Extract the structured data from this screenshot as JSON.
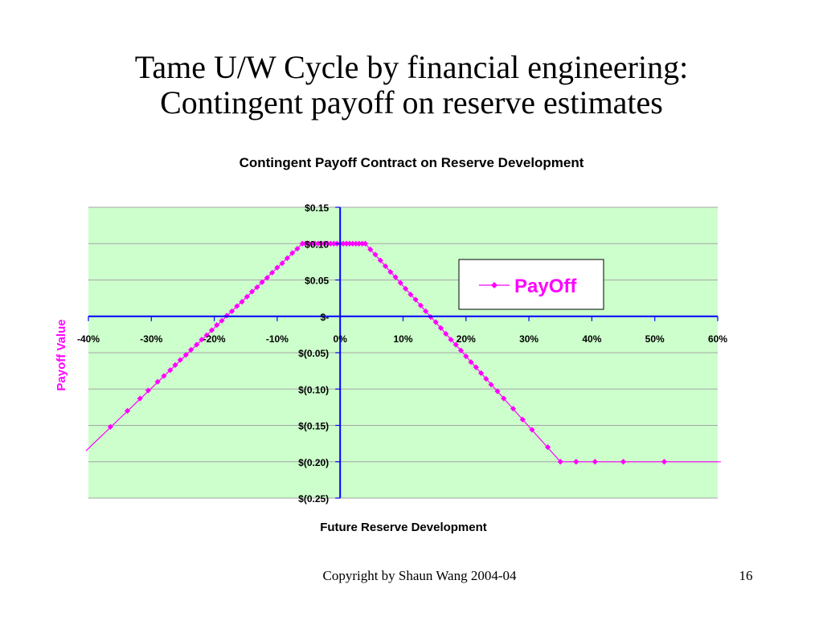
{
  "slide": {
    "title_line1": "Tame U/W Cycle by financial engineering:",
    "title_line2": "Contingent payoff on reserve estimates",
    "copyright": "Copyright by Shaun Wang 2004-04",
    "page_number": "16"
  },
  "colors": {
    "plot_background": "#ccffcc",
    "series": "#ff00ff",
    "axis": "#0000ff",
    "gridline": "#a6a6a6"
  },
  "chart_data": {
    "type": "line",
    "title": "Contingent Payoff Contract on Reserve Development",
    "xlabel": "Future Reserve Development",
    "ylabel": "Payoff Value",
    "xlim": [
      -0.4,
      0.6
    ],
    "ylim": [
      -0.25,
      0.15
    ],
    "x_ticks": [
      -0.4,
      -0.3,
      -0.2,
      -0.1,
      0,
      0.1,
      0.2,
      0.3,
      0.4,
      0.5,
      0.6
    ],
    "x_tick_labels": [
      "-40%",
      "-30%",
      "-20%",
      "-10%",
      "0%",
      "10%",
      "20%",
      "30%",
      "40%",
      "50%",
      "60%"
    ],
    "y_ticks": [
      0.15,
      0.1,
      0.05,
      0,
      -0.05,
      -0.1,
      -0.15,
      -0.2,
      -0.25
    ],
    "y_tick_labels": [
      "$0.15",
      "$0.10",
      "$0.05",
      "$-",
      "$(0.05)",
      "$(0.10)",
      "$(0.15)",
      "$(0.20)",
      "$(0.25)"
    ],
    "grid": "horizontal",
    "legend_position": "right",
    "series": [
      {
        "name": "PayOff",
        "line": [
          [
            -0.404,
            -0.185
          ],
          [
            -0.06,
            0.1
          ],
          [
            0.04,
            0.1
          ],
          [
            0.35,
            -0.2
          ],
          [
            0.605,
            -0.2
          ]
        ],
        "x": [
          -0.365,
          -0.338,
          -0.318,
          -0.305,
          -0.29,
          -0.28,
          -0.27,
          -0.262,
          -0.254,
          -0.245,
          -0.237,
          -0.228,
          -0.22,
          -0.212,
          -0.204,
          -0.196,
          -0.188,
          -0.18,
          -0.172,
          -0.164,
          -0.156,
          -0.148,
          -0.14,
          -0.132,
          -0.124,
          -0.116,
          -0.108,
          -0.1,
          -0.092,
          -0.084,
          -0.076,
          -0.068,
          -0.06,
          -0.055,
          -0.05,
          -0.045,
          -0.04,
          -0.035,
          -0.03,
          -0.025,
          -0.02,
          -0.015,
          -0.01,
          -0.005,
          0.0,
          0.005,
          0.01,
          0.015,
          0.02,
          0.025,
          0.03,
          0.035,
          0.04,
          0.048,
          0.056,
          0.064,
          0.072,
          0.08,
          0.088,
          0.096,
          0.104,
          0.112,
          0.12,
          0.128,
          0.136,
          0.144,
          0.152,
          0.16,
          0.168,
          0.176,
          0.184,
          0.192,
          0.2,
          0.208,
          0.216,
          0.224,
          0.232,
          0.24,
          0.25,
          0.26,
          0.275,
          0.29,
          0.305,
          0.33,
          0.35,
          0.375,
          0.405,
          0.45,
          0.515
        ],
        "values": [
          -0.152,
          -0.13,
          -0.113,
          -0.102,
          -0.09,
          -0.082,
          -0.074,
          -0.067,
          -0.06,
          -0.053,
          -0.046,
          -0.039,
          -0.032,
          -0.026,
          -0.019,
          -0.012,
          -0.006,
          0.001,
          0.007,
          0.014,
          0.02,
          0.027,
          0.034,
          0.04,
          0.047,
          0.053,
          0.06,
          0.067,
          0.073,
          0.08,
          0.087,
          0.093,
          0.1,
          0.1,
          0.1,
          0.1,
          0.1,
          0.1,
          0.1,
          0.1,
          0.1,
          0.1,
          0.1,
          0.1,
          0.1,
          0.1,
          0.1,
          0.1,
          0.1,
          0.1,
          0.1,
          0.1,
          0.1,
          0.092,
          0.085,
          0.077,
          0.069,
          0.061,
          0.054,
          0.046,
          0.038,
          0.03,
          0.023,
          0.015,
          0.007,
          -0.001,
          -0.008,
          -0.016,
          -0.024,
          -0.032,
          -0.039,
          -0.047,
          -0.055,
          -0.063,
          -0.07,
          -0.078,
          -0.086,
          -0.094,
          -0.103,
          -0.113,
          -0.127,
          -0.142,
          -0.156,
          -0.18,
          -0.2,
          -0.2,
          -0.2,
          -0.2,
          -0.2
        ]
      }
    ]
  }
}
